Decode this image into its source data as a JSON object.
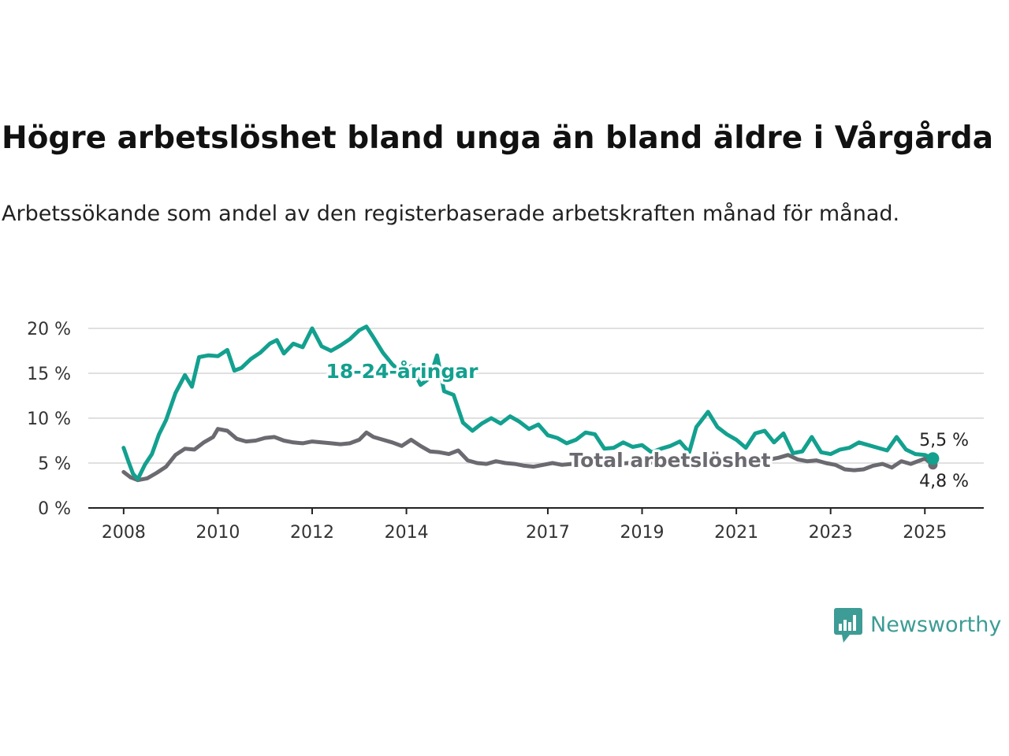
{
  "title": "Högre arbetslöshet bland unga än bland äldre i Vårgårda",
  "subtitle": "Arbetssökande som andel av den registerbaserade arbetskraften månad för månad.",
  "brand": {
    "name": "Newsworthy",
    "icon": "newsworthy-logo-icon",
    "color": "#3d9c95"
  },
  "chart_data": {
    "type": "line",
    "title": "Högre arbetslöshet bland unga än bland äldre i Vårgårda",
    "subtitle": "Arbetssökande som andel av den registerbaserade arbetskraften månad för månad.",
    "xlabel": "",
    "ylabel": "",
    "ylim": [
      0,
      20
    ],
    "y_ticks": [
      0,
      5,
      10,
      15,
      20
    ],
    "y_tick_labels": [
      "0 %",
      "5 %",
      "10 %",
      "15 %",
      "20 %"
    ],
    "x_ticks": [
      2008,
      2010,
      2012,
      2014,
      2017,
      2019,
      2021,
      2023,
      2025
    ],
    "x_tick_labels": [
      "2008",
      "2010",
      "2012",
      "2014",
      "2017",
      "2019",
      "2021",
      "2023",
      "2025"
    ],
    "grid": true,
    "legend": "inline labels",
    "series": [
      {
        "name": "18-24-åringar",
        "color": "#13a08f",
        "end_label": "5,5 %",
        "points": [
          [
            2008.0,
            6.7
          ],
          [
            2008.1,
            5.2
          ],
          [
            2008.2,
            3.8
          ],
          [
            2008.3,
            3.2
          ],
          [
            2008.45,
            4.8
          ],
          [
            2008.6,
            6.0
          ],
          [
            2008.75,
            8.2
          ],
          [
            2008.9,
            9.8
          ],
          [
            2009.1,
            12.8
          ],
          [
            2009.3,
            14.8
          ],
          [
            2009.45,
            13.5
          ],
          [
            2009.6,
            16.8
          ],
          [
            2009.8,
            17.0
          ],
          [
            2010.0,
            16.9
          ],
          [
            2010.2,
            17.6
          ],
          [
            2010.35,
            15.3
          ],
          [
            2010.5,
            15.6
          ],
          [
            2010.7,
            16.6
          ],
          [
            2010.9,
            17.3
          ],
          [
            2011.1,
            18.3
          ],
          [
            2011.25,
            18.7
          ],
          [
            2011.4,
            17.2
          ],
          [
            2011.6,
            18.3
          ],
          [
            2011.8,
            17.9
          ],
          [
            2012.0,
            20.0
          ],
          [
            2012.2,
            18.0
          ],
          [
            2012.4,
            17.5
          ],
          [
            2012.6,
            18.1
          ],
          [
            2012.8,
            18.8
          ],
          [
            2013.0,
            19.8
          ],
          [
            2013.15,
            20.2
          ],
          [
            2013.3,
            19.0
          ],
          [
            2013.5,
            17.3
          ],
          [
            2013.7,
            16.0
          ],
          [
            2013.9,
            15.0
          ],
          [
            2014.1,
            15.8
          ],
          [
            2014.3,
            13.7
          ],
          [
            2014.5,
            14.5
          ],
          [
            2014.65,
            17.0
          ],
          [
            2014.8,
            13.0
          ],
          [
            2015.0,
            12.6
          ],
          [
            2015.2,
            9.5
          ],
          [
            2015.4,
            8.6
          ],
          [
            2015.6,
            9.4
          ],
          [
            2015.8,
            10.0
          ],
          [
            2016.0,
            9.4
          ],
          [
            2016.2,
            10.2
          ],
          [
            2016.4,
            9.6
          ],
          [
            2016.6,
            8.8
          ],
          [
            2016.8,
            9.3
          ],
          [
            2017.0,
            8.1
          ],
          [
            2017.2,
            7.8
          ],
          [
            2017.4,
            7.2
          ],
          [
            2017.6,
            7.6
          ],
          [
            2017.8,
            8.4
          ],
          [
            2018.0,
            8.2
          ],
          [
            2018.2,
            6.6
          ],
          [
            2018.4,
            6.7
          ],
          [
            2018.6,
            7.3
          ],
          [
            2018.8,
            6.8
          ],
          [
            2019.0,
            7.0
          ],
          [
            2019.2,
            6.2
          ],
          [
            2019.4,
            6.6
          ],
          [
            2019.6,
            6.9
          ],
          [
            2019.8,
            7.4
          ],
          [
            2020.0,
            6.2
          ],
          [
            2020.15,
            9.0
          ],
          [
            2020.4,
            10.7
          ],
          [
            2020.6,
            9.0
          ],
          [
            2020.8,
            8.2
          ],
          [
            2021.0,
            7.6
          ],
          [
            2021.2,
            6.7
          ],
          [
            2021.4,
            8.3
          ],
          [
            2021.6,
            8.6
          ],
          [
            2021.8,
            7.3
          ],
          [
            2022.0,
            8.3
          ],
          [
            2022.2,
            6.1
          ],
          [
            2022.4,
            6.3
          ],
          [
            2022.6,
            7.9
          ],
          [
            2022.8,
            6.2
          ],
          [
            2023.0,
            6.0
          ],
          [
            2023.2,
            6.5
          ],
          [
            2023.4,
            6.7
          ],
          [
            2023.6,
            7.3
          ],
          [
            2023.8,
            7.0
          ],
          [
            2024.0,
            6.7
          ],
          [
            2024.2,
            6.4
          ],
          [
            2024.4,
            7.9
          ],
          [
            2024.6,
            6.5
          ],
          [
            2024.8,
            6.0
          ],
          [
            2025.0,
            5.9
          ],
          [
            2025.17,
            5.5
          ]
        ]
      },
      {
        "name": "Total arbetslöshet",
        "color": "#6b6a70",
        "end_label": "4,8 %",
        "points": [
          [
            2008.0,
            4.0
          ],
          [
            2008.15,
            3.4
          ],
          [
            2008.3,
            3.1
          ],
          [
            2008.5,
            3.3
          ],
          [
            2008.7,
            3.9
          ],
          [
            2008.9,
            4.6
          ],
          [
            2009.1,
            5.9
          ],
          [
            2009.3,
            6.6
          ],
          [
            2009.5,
            6.5
          ],
          [
            2009.7,
            7.3
          ],
          [
            2009.9,
            7.9
          ],
          [
            2010.0,
            8.8
          ],
          [
            2010.2,
            8.6
          ],
          [
            2010.4,
            7.7
          ],
          [
            2010.6,
            7.4
          ],
          [
            2010.8,
            7.5
          ],
          [
            2011.0,
            7.8
          ],
          [
            2011.2,
            7.9
          ],
          [
            2011.4,
            7.5
          ],
          [
            2011.6,
            7.3
          ],
          [
            2011.8,
            7.2
          ],
          [
            2012.0,
            7.4
          ],
          [
            2012.2,
            7.3
          ],
          [
            2012.4,
            7.2
          ],
          [
            2012.6,
            7.1
          ],
          [
            2012.8,
            7.2
          ],
          [
            2013.0,
            7.6
          ],
          [
            2013.15,
            8.4
          ],
          [
            2013.3,
            7.9
          ],
          [
            2013.5,
            7.6
          ],
          [
            2013.7,
            7.3
          ],
          [
            2013.9,
            6.9
          ],
          [
            2014.1,
            7.6
          ],
          [
            2014.3,
            6.9
          ],
          [
            2014.5,
            6.3
          ],
          [
            2014.7,
            6.2
          ],
          [
            2014.9,
            6.0
          ],
          [
            2015.1,
            6.4
          ],
          [
            2015.3,
            5.3
          ],
          [
            2015.5,
            5.0
          ],
          [
            2015.7,
            4.9
          ],
          [
            2015.9,
            5.2
          ],
          [
            2016.1,
            5.0
          ],
          [
            2016.3,
            4.9
          ],
          [
            2016.5,
            4.7
          ],
          [
            2016.7,
            4.6
          ],
          [
            2016.9,
            4.8
          ],
          [
            2017.1,
            5.0
          ],
          [
            2017.3,
            4.8
          ],
          [
            2017.5,
            4.9
          ],
          [
            2017.7,
            5.0
          ],
          [
            2017.9,
            4.9
          ],
          [
            2018.1,
            5.1
          ],
          [
            2018.3,
            5.0
          ],
          [
            2018.5,
            4.9
          ],
          [
            2018.7,
            5.0
          ],
          [
            2018.9,
            4.9
          ],
          [
            2019.1,
            5.0
          ],
          [
            2019.3,
            5.1
          ],
          [
            2019.5,
            5.0
          ],
          [
            2019.7,
            5.0
          ],
          [
            2019.9,
            5.1
          ],
          [
            2020.1,
            5.4
          ],
          [
            2020.3,
            5.7
          ],
          [
            2020.5,
            5.8
          ],
          [
            2020.7,
            5.5
          ],
          [
            2020.9,
            5.3
          ],
          [
            2021.1,
            5.4
          ],
          [
            2021.3,
            5.3
          ],
          [
            2021.5,
            5.5
          ],
          [
            2021.7,
            5.4
          ],
          [
            2021.9,
            5.6
          ],
          [
            2022.1,
            5.9
          ],
          [
            2022.3,
            5.4
          ],
          [
            2022.5,
            5.2
          ],
          [
            2022.7,
            5.3
          ],
          [
            2022.9,
            5.0
          ],
          [
            2023.1,
            4.8
          ],
          [
            2023.3,
            4.3
          ],
          [
            2023.5,
            4.2
          ],
          [
            2023.7,
            4.3
          ],
          [
            2023.9,
            4.7
          ],
          [
            2024.1,
            4.9
          ],
          [
            2024.3,
            4.5
          ],
          [
            2024.5,
            5.2
          ],
          [
            2024.7,
            4.9
          ],
          [
            2024.9,
            5.3
          ],
          [
            2025.0,
            5.5
          ],
          [
            2025.17,
            4.8
          ]
        ]
      }
    ]
  }
}
